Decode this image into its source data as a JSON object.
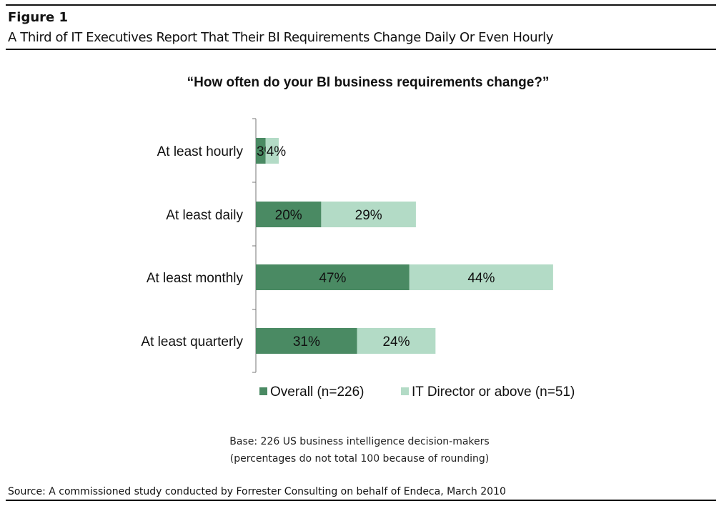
{
  "figure": {
    "label": "Figure 1",
    "subtitle": "A Third of IT Executives Report That Their BI Requirements Change Daily Or Even Hourly"
  },
  "chart_data": {
    "type": "bar",
    "orientation": "horizontal",
    "stacked": true,
    "title": "“How often do your BI business requirements change?”",
    "categories": [
      "At least hourly",
      "At least daily",
      "At least monthly",
      "At least quarterly"
    ],
    "series": [
      {
        "name": "Overall (n=226)",
        "values": [
          3,
          20,
          47,
          31
        ],
        "color": "#4a8a63"
      },
      {
        "name": "IT Director or above (n=51)",
        "values": [
          4,
          29,
          44,
          24
        ],
        "color": "#b3dbc6"
      }
    ],
    "value_suffix": "%",
    "xlim": [
      0,
      100
    ],
    "grid": false,
    "legend": "bottom"
  },
  "notes": {
    "base": "Base: 226 US business intelligence decision-makers",
    "rounding": "(percentages do not total 100 because of rounding)",
    "source": "Source: A commissioned study conducted by Forrester Consulting on behalf of Endeca, March 2010"
  }
}
